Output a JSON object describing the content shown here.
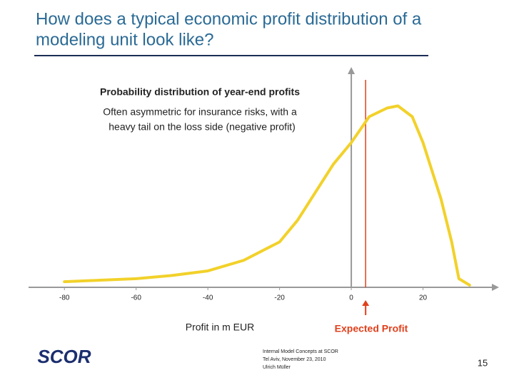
{
  "chart_data": {
    "type": "line",
    "title": [
      "How does a typical economic profit distribution of a",
      "modeling unit look like?"
    ],
    "subtitle": "Probability distribution of year-end profits",
    "annotation": [
      "Often asymmetric for insurance risks, with a",
      "heavy tail on the loss side (negative profit)"
    ],
    "x_label": "Profit in m EUR",
    "marker_label": "Expected Profit",
    "marker_x": 4,
    "marker_color": "#e0401c",
    "x": [
      -80,
      -70,
      -60,
      -50,
      -40,
      -30,
      -20,
      -15,
      -10,
      -5,
      0,
      5,
      10,
      13,
      17,
      20,
      25,
      28,
      30,
      33
    ],
    "series": [
      {
        "color": "#f2d12a",
        "values": [
          0.026,
          0.033,
          0.04,
          0.055,
          0.076,
          0.125,
          0.21,
          0.31,
          0.44,
          0.57,
          0.67,
          0.79,
          0.83,
          0.84,
          0.79,
          0.67,
          0.41,
          0.21,
          0.04,
          0.01
        ]
      }
    ],
    "xlim": [
      -90,
      40
    ],
    "ylim": [
      0,
      1
    ],
    "xticks": [
      -80,
      -60,
      -40,
      -20,
      0,
      20
    ]
  },
  "footer": {
    "logo": "SCOR",
    "lines": [
      "Internal Model Concepts at SCOR",
      "Tel Aviv, November 23, 2010",
      "Ulrich Müller"
    ],
    "page": "15"
  }
}
